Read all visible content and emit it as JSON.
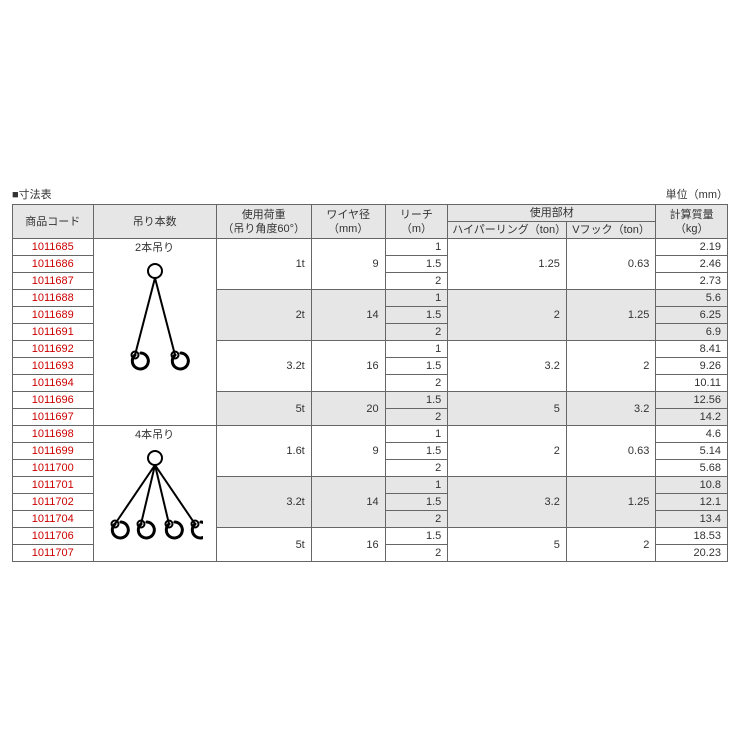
{
  "title": "■寸法表",
  "unit_label": "単位（mm）",
  "headers": {
    "code": "商品コード",
    "hang": "吊り本数",
    "load_l1": "使用荷重",
    "load_l2": "（吊り角度60°）",
    "wire_l1": "ワイヤ径",
    "wire_l2": "（mm）",
    "reach_l1": "リーチ",
    "reach_l2": "（m）",
    "part": "使用部材",
    "hyper": "ハイパーリング（ton）",
    "vhook": "Vフック（ton）",
    "mass_l1": "計算質量",
    "mass_l2": "（kg）"
  },
  "hang_labels": {
    "two": "2本吊り",
    "four": "4本吊り"
  },
  "colors": {
    "code_text": "#c00",
    "border": "#666",
    "header_bg": "#e6e6e6",
    "shade_bg": "#e6e6e6",
    "hook_stroke": "#000"
  },
  "rows": [
    {
      "code": "1011685",
      "reach": "1",
      "mass": "2.19"
    },
    {
      "code": "1011686",
      "reach": "1.5",
      "mass": "2.46"
    },
    {
      "code": "1011687",
      "reach": "2",
      "mass": "2.73"
    },
    {
      "code": "1011688",
      "reach": "1",
      "mass": "5.6"
    },
    {
      "code": "1011689",
      "reach": "1.5",
      "mass": "6.25"
    },
    {
      "code": "1011691",
      "reach": "2",
      "mass": "6.9"
    },
    {
      "code": "1011692",
      "reach": "1",
      "mass": "8.41"
    },
    {
      "code": "1011693",
      "reach": "1.5",
      "mass": "9.26"
    },
    {
      "code": "1011694",
      "reach": "2",
      "mass": "10.11"
    },
    {
      "code": "1011696",
      "reach": "1.5",
      "mass": "12.56"
    },
    {
      "code": "1011697",
      "reach": "2",
      "mass": "14.2"
    },
    {
      "code": "1011698",
      "reach": "1",
      "mass": "4.6"
    },
    {
      "code": "1011699",
      "reach": "1.5",
      "mass": "5.14"
    },
    {
      "code": "1011700",
      "reach": "2",
      "mass": "5.68"
    },
    {
      "code": "1011701",
      "reach": "1",
      "mass": "10.8"
    },
    {
      "code": "1011702",
      "reach": "1.5",
      "mass": "12.1"
    },
    {
      "code": "1011704",
      "reach": "2",
      "mass": "13.4"
    },
    {
      "code": "1011706",
      "reach": "1.5",
      "mass": "18.53"
    },
    {
      "code": "1011707",
      "reach": "2",
      "mass": "20.23"
    }
  ],
  "groups": [
    {
      "load": "1t",
      "wire": "9",
      "hyper": "1.25",
      "vhook": "0.63",
      "rowspan": 3,
      "shade": false
    },
    {
      "load": "2t",
      "wire": "14",
      "hyper": "2",
      "vhook": "1.25",
      "rowspan": 3,
      "shade": true
    },
    {
      "load": "3.2t",
      "wire": "16",
      "hyper": "3.2",
      "vhook": "2",
      "rowspan": 3,
      "shade": false
    },
    {
      "load": "5t",
      "wire": "20",
      "hyper": "5",
      "vhook": "3.2",
      "rowspan": 2,
      "shade": true
    },
    {
      "load": "1.6t",
      "wire": "9",
      "hyper": "2",
      "vhook": "0.63",
      "rowspan": 3,
      "shade": false
    },
    {
      "load": "3.2t",
      "wire": "14",
      "hyper": "3.2",
      "vhook": "1.25",
      "rowspan": 3,
      "shade": true
    },
    {
      "load": "5t",
      "wire": "16",
      "hyper": "5",
      "vhook": "2",
      "rowspan": 2,
      "shade": false
    }
  ]
}
